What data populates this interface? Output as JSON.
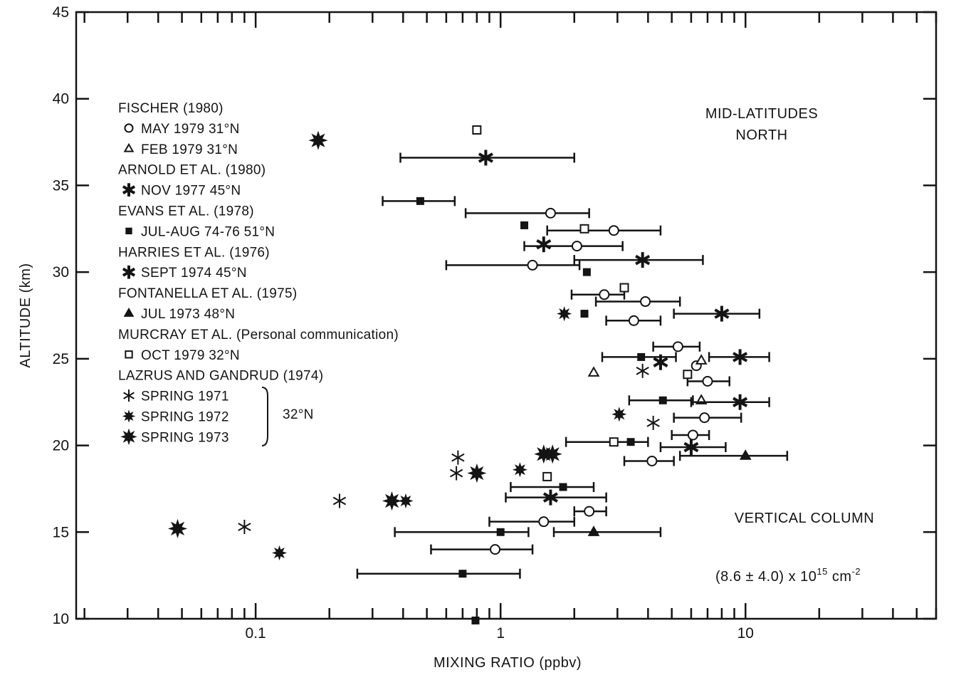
{
  "chart_data": {
    "type": "scatter",
    "xlabel": "MIXING RATIO (ppbv)",
    "ylabel": "ALTITUDE (km)",
    "xscale": "log",
    "xlim": [
      0.0185,
      60
    ],
    "ylim": [
      10,
      45
    ],
    "xticks": [
      0.1,
      1,
      10
    ],
    "xtick_labels": [
      "0.1",
      "1",
      "10"
    ],
    "yticks": [
      10,
      15,
      20,
      25,
      30,
      35,
      40,
      45
    ],
    "grid": false,
    "legend_position": "top-left",
    "annotations": {
      "region_line1": "MID-LATITUDES",
      "region_line2": "NORTH",
      "column_title": "VERTICAL COLUMN",
      "column_value": "(8.6 ± 4.0) x 10",
      "column_exp": "15",
      "column_unit": "cm",
      "column_unit_exp": "-2",
      "lat_bracket": "32°N"
    },
    "legend": [
      {
        "type": "header",
        "text": "FISCHER (1980)"
      },
      {
        "type": "entry",
        "marker": "circle",
        "text": "MAY 1979 31°N"
      },
      {
        "type": "entry",
        "marker": "triangle",
        "text": "FEB 1979 31°N"
      },
      {
        "type": "header",
        "text": "ARNOLD ET AL. (1980)"
      },
      {
        "type": "entry",
        "marker": "asterisk-bold",
        "text": "NOV 1977 45°N"
      },
      {
        "type": "header",
        "text": "EVANS ET AL. (1978)"
      },
      {
        "type": "entry",
        "marker": "square-filled",
        "text": "JUL-AUG 74-76 51°N"
      },
      {
        "type": "header",
        "text": "HARRIES ET AL. (1976)"
      },
      {
        "type": "entry",
        "marker": "asterisk-bold",
        "text": "SEPT 1974 45°N"
      },
      {
        "type": "header",
        "text": "FONTANELLA ET AL. (1975)"
      },
      {
        "type": "entry",
        "marker": "triangle-filled",
        "text": "JUL 1973 48°N"
      },
      {
        "type": "header",
        "text": "MURCRAY ET AL. (Personal communication)"
      },
      {
        "type": "entry",
        "marker": "square-open",
        "text": "OCT 1979 32°N"
      },
      {
        "type": "header",
        "text": "LAZRUS AND GANDRUD (1974)"
      },
      {
        "type": "entry",
        "marker": "asterisk-thin",
        "text": "SPRING 1971"
      },
      {
        "type": "entry",
        "marker": "starburst-small",
        "text": "SPRING 1972"
      },
      {
        "type": "entry",
        "marker": "starburst-large",
        "text": "SPRING 1973"
      }
    ],
    "series": [
      {
        "name": "MAY 1979 31°N",
        "marker": "circle",
        "points": [
          {
            "x": 1.6,
            "y": 33.4,
            "xerr": [
              0.72,
              2.3
            ]
          },
          {
            "x": 2.9,
            "y": 32.4,
            "xerr": [
              1.55,
              4.5
            ]
          },
          {
            "x": 2.05,
            "y": 31.5,
            "xerr": [
              1.25,
              3.15
            ]
          },
          {
            "x": 1.35,
            "y": 30.4,
            "xerr": [
              0.6,
              2.1
            ]
          },
          {
            "x": 2.65,
            "y": 28.7,
            "xerr": [
              1.95,
              3.2
            ]
          },
          {
            "x": 3.9,
            "y": 28.3,
            "xerr": [
              2.45,
              5.4
            ]
          },
          {
            "x": 3.5,
            "y": 27.2,
            "xerr": [
              2.7,
              4.5
            ]
          },
          {
            "x": 5.3,
            "y": 25.7,
            "xerr": [
              4.2,
              6.5
            ]
          },
          {
            "x": 6.3,
            "y": 24.6
          },
          {
            "x": 7.0,
            "y": 23.7,
            "xerr": [
              5.8,
              8.6
            ]
          },
          {
            "x": 6.8,
            "y": 21.6,
            "xerr": [
              5.1,
              9.6
            ]
          },
          {
            "x": 6.1,
            "y": 20.6,
            "xerr": [
              5.0,
              7.1
            ]
          },
          {
            "x": 4.15,
            "y": 19.1,
            "xerr": [
              3.2,
              5.1
            ]
          },
          {
            "x": 2.3,
            "y": 16.2,
            "xerr": [
              2.0,
              2.7
            ]
          },
          {
            "x": 1.5,
            "y": 15.6,
            "xerr": [
              0.9,
              2.0
            ]
          },
          {
            "x": 0.95,
            "y": 14.0,
            "xerr": [
              0.52,
              1.35
            ]
          }
        ]
      },
      {
        "name": "FEB 1979 31°N",
        "marker": "triangle",
        "points": [
          {
            "x": 6.6,
            "y": 24.9
          },
          {
            "x": 2.4,
            "y": 24.2
          },
          {
            "x": 6.6,
            "y": 22.6
          }
        ]
      },
      {
        "name": "NOV 1977 45°N",
        "marker": "asterisk-bold",
        "points": [
          {
            "x": 0.87,
            "y": 36.6,
            "xerr": [
              0.39,
              2.0
            ]
          },
          {
            "x": 3.8,
            "y": 30.7,
            "xerr": [
              2.0,
              6.7
            ]
          },
          {
            "x": 8.0,
            "y": 27.6,
            "xerr": [
              5.1,
              11.4
            ]
          },
          {
            "x": 9.5,
            "y": 25.1,
            "xerr": [
              7.1,
              12.5
            ]
          },
          {
            "x": 9.5,
            "y": 22.5,
            "xerr": [
              6.0,
              12.5
            ]
          },
          {
            "x": 6.0,
            "y": 19.9,
            "xerr": [
              4.5,
              8.3
            ]
          },
          {
            "x": 1.6,
            "y": 17.0,
            "xerr": [
              1.05,
              2.7
            ]
          }
        ]
      },
      {
        "name": "JUL-AUG 74-76 51°N",
        "marker": "square-filled",
        "points": [
          {
            "x": 0.47,
            "y": 34.1,
            "xerr": [
              0.33,
              0.65
            ]
          },
          {
            "x": 1.25,
            "y": 32.7
          },
          {
            "x": 2.25,
            "y": 30.0
          },
          {
            "x": 2.2,
            "y": 27.6
          },
          {
            "x": 3.75,
            "y": 25.1,
            "xerr": [
              2.6,
              5.2
            ]
          },
          {
            "x": 4.6,
            "y": 22.6,
            "xerr": [
              3.35,
              6.1
            ]
          },
          {
            "x": 3.4,
            "y": 20.2,
            "xerr": [
              1.85,
              4.0
            ]
          },
          {
            "x": 1.8,
            "y": 17.6,
            "xerr": [
              1.1,
              2.4
            ]
          },
          {
            "x": 1.0,
            "y": 15.0,
            "xerr": [
              0.37,
              1.3
            ]
          },
          {
            "x": 0.7,
            "y": 12.6,
            "xerr": [
              0.26,
              1.2
            ]
          },
          {
            "x": 0.79,
            "y": 9.9
          }
        ]
      },
      {
        "name": "SEPT 1974 45°N",
        "marker": "asterisk-bold",
        "points": [
          {
            "x": 1.5,
            "y": 31.6
          },
          {
            "x": 4.5,
            "y": 24.8
          }
        ]
      },
      {
        "name": "JUL 1973 48°N",
        "marker": "triangle-filled",
        "points": [
          {
            "x": 10.0,
            "y": 19.4,
            "xerr": [
              5.4,
              14.8
            ]
          },
          {
            "x": 2.4,
            "y": 15.0,
            "xerr": [
              1.65,
              4.5
            ]
          }
        ]
      },
      {
        "name": "OCT 1979 32°N",
        "marker": "square-open",
        "points": [
          {
            "x": 0.8,
            "y": 38.2
          },
          {
            "x": 2.2,
            "y": 32.5
          },
          {
            "x": 3.2,
            "y": 29.1
          },
          {
            "x": 5.8,
            "y": 24.1
          },
          {
            "x": 2.9,
            "y": 20.2
          },
          {
            "x": 1.55,
            "y": 18.2
          }
        ]
      },
      {
        "name": "SPRING 1971",
        "marker": "asterisk-thin",
        "points": [
          {
            "x": 0.67,
            "y": 19.3
          },
          {
            "x": 0.66,
            "y": 18.4
          },
          {
            "x": 0.22,
            "y": 16.8
          },
          {
            "x": 0.09,
            "y": 15.3
          },
          {
            "x": 3.8,
            "y": 24.3
          },
          {
            "x": 4.2,
            "y": 21.3
          }
        ]
      },
      {
        "name": "SPRING 1972",
        "marker": "starburst-small",
        "points": [
          {
            "x": 1.2,
            "y": 18.6
          },
          {
            "x": 0.41,
            "y": 16.8
          },
          {
            "x": 0.125,
            "y": 13.8
          },
          {
            "x": 1.82,
            "y": 27.6
          },
          {
            "x": 3.05,
            "y": 21.8
          }
        ]
      },
      {
        "name": "SPRING 1973",
        "marker": "starburst-large",
        "points": [
          {
            "x": 0.18,
            "y": 37.6
          },
          {
            "x": 1.5,
            "y": 19.5
          },
          {
            "x": 1.63,
            "y": 19.5
          },
          {
            "x": 0.8,
            "y": 18.4
          },
          {
            "x": 0.36,
            "y": 16.8
          },
          {
            "x": 0.048,
            "y": 15.2
          }
        ]
      }
    ]
  }
}
